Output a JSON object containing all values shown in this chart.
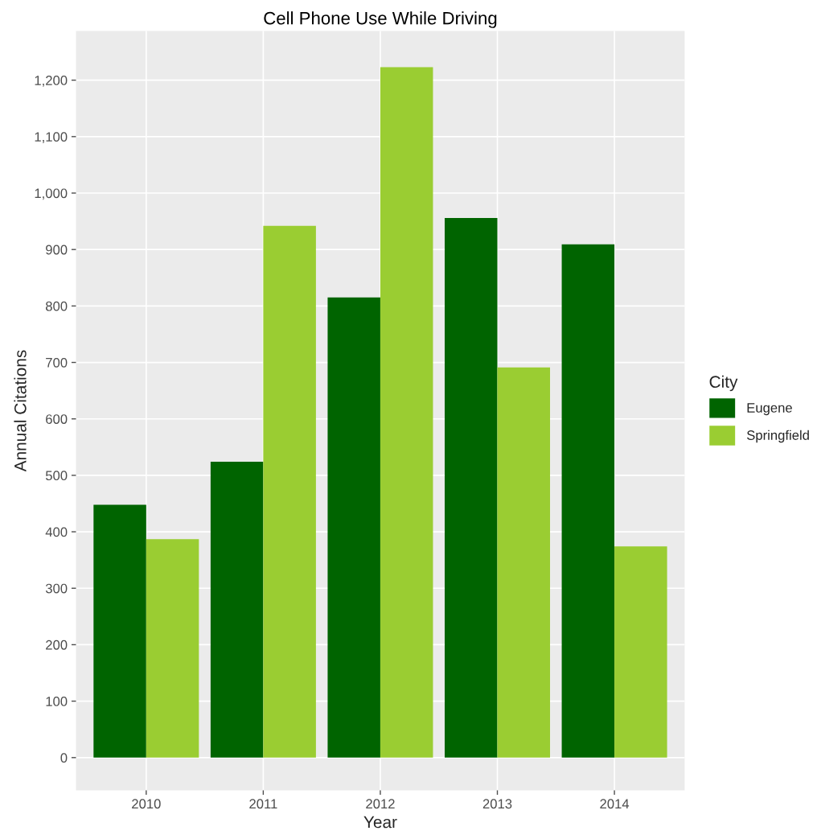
{
  "chart_data": {
    "type": "bar",
    "title": "Cell Phone Use While Driving",
    "xlabel": "Year",
    "ylabel": "Annual Citations",
    "legend_title": "City",
    "categories": [
      "2010",
      "2011",
      "2012",
      "2013",
      "2014"
    ],
    "series": [
      {
        "name": "Eugene",
        "color": "#006400",
        "values": [
          448,
          524,
          815,
          956,
          909
        ]
      },
      {
        "name": "Springfield",
        "color": "#9acd32",
        "values": [
          387,
          942,
          1223,
          691,
          374
        ]
      }
    ],
    "ylim": [
      -58,
      1287
    ],
    "yticks": [
      0,
      100,
      200,
      300,
      400,
      500,
      600,
      700,
      800,
      900,
      {
        "value": 1000,
        "label": "1,000"
      },
      {
        "value": 1100,
        "label": "1,100"
      },
      {
        "value": 1200,
        "label": "1,200"
      }
    ],
    "grid": true,
    "legend": "right"
  }
}
